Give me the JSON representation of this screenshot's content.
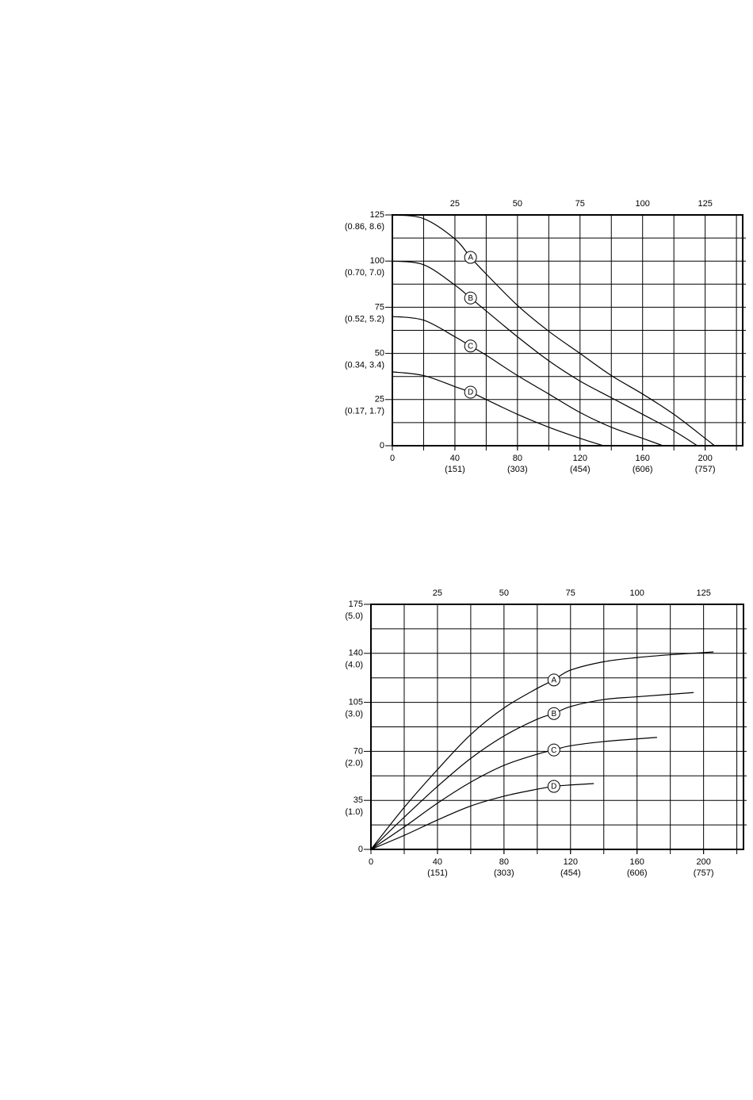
{
  "chart_data": [
    {
      "type": "line",
      "xlim": [
        0,
        224
      ],
      "xticks": [
        0,
        40,
        80,
        120,
        160,
        200
      ],
      "xtick_sublabels": [
        null,
        "(151)",
        "(303)",
        "(454)",
        "(606)",
        "(757)"
      ],
      "x2lim": [
        0,
        140
      ],
      "x2ticks": [
        25,
        50,
        75,
        100,
        125
      ],
      "ylim": [
        0,
        125
      ],
      "yticks": [
        0,
        25,
        50,
        75,
        100,
        125
      ],
      "ytick_sublabels": [
        null,
        "(0.17, 1.7)",
        "(0.34, 3.4)",
        "(0.52, 5.2)",
        "(0.70, 7.0)",
        "(0.86, 8.6)"
      ],
      "xgrid": [
        20,
        40,
        60,
        80,
        100,
        120,
        140,
        160,
        180,
        200,
        220
      ],
      "ygrid": [
        12.5,
        25,
        37.5,
        50,
        62.5,
        75,
        87.5,
        100,
        112.5
      ],
      "grid": true,
      "series": [
        {
          "name": "A",
          "color": "#000000",
          "x": [
            0,
            20,
            40,
            50,
            60,
            80,
            100,
            120,
            140,
            160,
            180,
            200,
            206
          ],
          "values": [
            125,
            123,
            112,
            102,
            93,
            76,
            62,
            50,
            38,
            28,
            17,
            4,
            0
          ]
        },
        {
          "name": "B",
          "color": "#000000",
          "x": [
            0,
            20,
            40,
            50,
            60,
            80,
            100,
            120,
            140,
            160,
            180,
            195
          ],
          "values": [
            100,
            98,
            87,
            80,
            73,
            59,
            46,
            35,
            26,
            17,
            8,
            0
          ]
        },
        {
          "name": "C",
          "color": "#000000",
          "x": [
            0,
            20,
            40,
            50,
            60,
            80,
            100,
            120,
            140,
            160,
            173
          ],
          "values": [
            70,
            68,
            59,
            54,
            49,
            38,
            28,
            18,
            10,
            4,
            0
          ]
        },
        {
          "name": "D",
          "color": "#000000",
          "x": [
            0,
            20,
            40,
            50,
            60,
            80,
            100,
            120,
            135
          ],
          "values": [
            40,
            38,
            32,
            29,
            25,
            17,
            10,
            4,
            0
          ]
        }
      ]
    },
    {
      "type": "line",
      "xlim": [
        0,
        224
      ],
      "xticks": [
        0,
        40,
        80,
        120,
        160,
        200
      ],
      "xtick_sublabels": [
        null,
        "(151)",
        "(303)",
        "(454)",
        "(606)",
        "(757)"
      ],
      "x2lim": [
        0,
        140
      ],
      "x2ticks": [
        25,
        50,
        75,
        100,
        125
      ],
      "ylim": [
        0,
        175
      ],
      "yticks": [
        0,
        35,
        70,
        105,
        140,
        175
      ],
      "ytick_sublabels": [
        null,
        "(1.0)",
        "(2.0)",
        "(3.0)",
        "(4.0)",
        "(5.0)"
      ],
      "xgrid": [
        20,
        40,
        60,
        80,
        100,
        120,
        140,
        160,
        180,
        200,
        220
      ],
      "ygrid": [
        17.5,
        35,
        52.5,
        70,
        87.5,
        105,
        122.5,
        140,
        157.5
      ],
      "grid": true,
      "series": [
        {
          "name": "A",
          "color": "#000000",
          "x": [
            0,
            20,
            40,
            60,
            80,
            100,
            110,
            120,
            140,
            160,
            180,
            206
          ],
          "values": [
            0,
            30,
            57,
            82,
            101,
            115,
            121,
            128,
            134,
            137,
            139,
            141
          ]
        },
        {
          "name": "B",
          "color": "#000000",
          "x": [
            0,
            20,
            40,
            60,
            80,
            100,
            110,
            120,
            140,
            160,
            194
          ],
          "values": [
            0,
            23,
            45,
            65,
            81,
            93,
            97,
            102,
            107,
            109,
            112
          ]
        },
        {
          "name": "C",
          "color": "#000000",
          "x": [
            0,
            20,
            40,
            60,
            80,
            100,
            110,
            120,
            140,
            172
          ],
          "values": [
            0,
            16,
            33,
            48,
            60,
            68,
            71,
            74,
            77,
            80
          ]
        },
        {
          "name": "D",
          "color": "#000000",
          "x": [
            0,
            20,
            40,
            60,
            80,
            100,
            110,
            120,
            134
          ],
          "values": [
            0,
            10,
            21,
            31,
            38,
            43,
            45,
            46,
            47
          ]
        }
      ]
    }
  ]
}
